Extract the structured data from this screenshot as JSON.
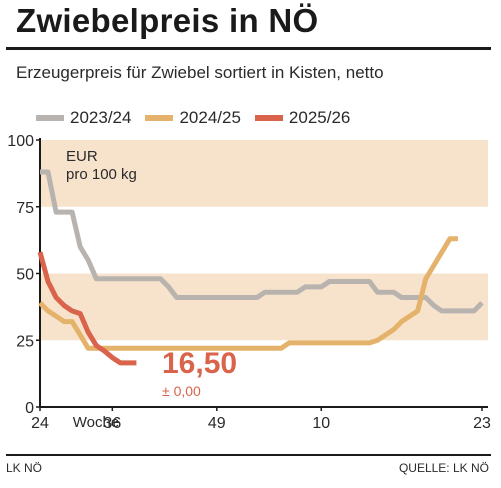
{
  "header": {
    "title": "Zwiebelpreis in NÖ",
    "subtitle": "Erzeugerpreis für Zwiebel sortiert in Kisten, netto"
  },
  "footer": {
    "left": "LK NÖ",
    "right": "QUELLE: LK NÖ"
  },
  "chart_data": {
    "type": "line",
    "title": "Zwiebelpreis in NÖ",
    "subtitle": "Erzeugerpreis für Zwiebel sortiert in Kisten, netto",
    "unit": "EUR pro 100 kg",
    "unit_line1": "EUR",
    "unit_line2": "pro 100 kg",
    "xlabel": "Woche",
    "x_tick_labels": [
      "24",
      "Woche",
      "36",
      "49",
      "10",
      "23"
    ],
    "x_ticks_at_index": [
      0,
      9,
      22,
      35,
      48
    ],
    "y_ticks": [
      0,
      25,
      50,
      75,
      100
    ],
    "ylim": [
      0,
      100
    ],
    "shaded_bands": [
      [
        25,
        50
      ],
      [
        75,
        100
      ]
    ],
    "band_color": "#f7e3cc",
    "legend_position": "top-left",
    "latest_value": "16,50",
    "latest_change": "± 0,00",
    "series": [
      {
        "name": "2023/24",
        "color": "#b8b3ae",
        "values": [
          88,
          88,
          73,
          73,
          73,
          60,
          55,
          48,
          48,
          48,
          48,
          48,
          48,
          48,
          48,
          48,
          45,
          41,
          41,
          41,
          41,
          41,
          41,
          41,
          41,
          41,
          41,
          41,
          43,
          43,
          43,
          43,
          43,
          45,
          45,
          45,
          47,
          47,
          47,
          47,
          47,
          47,
          43,
          43,
          43,
          41,
          41,
          41,
          41,
          38,
          36,
          36,
          36,
          36,
          36,
          39
        ]
      },
      {
        "name": "2024/25",
        "color": "#e5b26b",
        "values": [
          39,
          36,
          34,
          32,
          32,
          27,
          22,
          22,
          22,
          22,
          22,
          22,
          22,
          22,
          22,
          22,
          22,
          22,
          22,
          22,
          22,
          22,
          22,
          22,
          22,
          22,
          22,
          22,
          22,
          22,
          22,
          24,
          24,
          24,
          24,
          24,
          24,
          24,
          24,
          24,
          24,
          24,
          25,
          27,
          29,
          32,
          34,
          36,
          48,
          53,
          58,
          63,
          63
        ]
      },
      {
        "name": "2025/26",
        "color": "#d9634b",
        "values": [
          58,
          47,
          41,
          38,
          36,
          35,
          28,
          23,
          21,
          18.5,
          16.5,
          16.5,
          16.5
        ]
      }
    ]
  }
}
